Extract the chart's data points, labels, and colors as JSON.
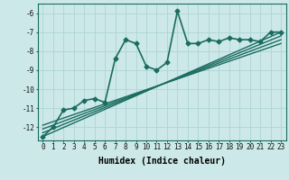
{
  "xlabel": "Humidex (Indice chaleur)",
  "bg_color": "#cce8e8",
  "line_color": "#1a6b60",
  "grid_color": "#aed4d4",
  "xlim": [
    -0.5,
    23.5
  ],
  "ylim": [
    -12.7,
    -5.5
  ],
  "xticks": [
    0,
    1,
    2,
    3,
    4,
    5,
    6,
    7,
    8,
    9,
    10,
    11,
    12,
    13,
    14,
    15,
    16,
    17,
    18,
    19,
    20,
    21,
    22,
    23
  ],
  "yticks": [
    -12,
    -11,
    -10,
    -9,
    -8,
    -7,
    -6
  ],
  "series": [
    {
      "x": [
        0,
        1,
        2,
        3,
        4,
        5,
        6,
        7,
        8,
        9,
        10,
        11,
        12,
        13,
        14,
        15,
        16,
        17,
        18,
        19,
        20,
        21,
        22,
        23
      ],
      "y": [
        -12.5,
        -12.0,
        -11.1,
        -11.0,
        -10.6,
        -10.5,
        -10.7,
        -8.4,
        -7.4,
        -7.6,
        -8.8,
        -9.0,
        -8.6,
        -5.9,
        -7.6,
        -7.6,
        -7.4,
        -7.5,
        -7.3,
        -7.4,
        -7.4,
        -7.5,
        -7.0,
        -7.0
      ],
      "marker": "D",
      "markersize": 2.5,
      "linewidth": 1.2,
      "zorder": 5
    },
    {
      "x": [
        0,
        23
      ],
      "y": [
        -12.5,
        -7.0
      ],
      "marker": "",
      "markersize": 0,
      "linewidth": 1.0,
      "zorder": 2
    },
    {
      "x": [
        0,
        23
      ],
      "y": [
        -12.3,
        -7.2
      ],
      "marker": "",
      "markersize": 0,
      "linewidth": 1.0,
      "zorder": 2
    },
    {
      "x": [
        0,
        23
      ],
      "y": [
        -12.1,
        -7.4
      ],
      "marker": "",
      "markersize": 0,
      "linewidth": 1.0,
      "zorder": 2
    },
    {
      "x": [
        0,
        23
      ],
      "y": [
        -11.9,
        -7.6
      ],
      "marker": "",
      "markersize": 0,
      "linewidth": 1.0,
      "zorder": 2
    }
  ],
  "tick_fontsize": 5.5,
  "label_fontsize": 7.0
}
